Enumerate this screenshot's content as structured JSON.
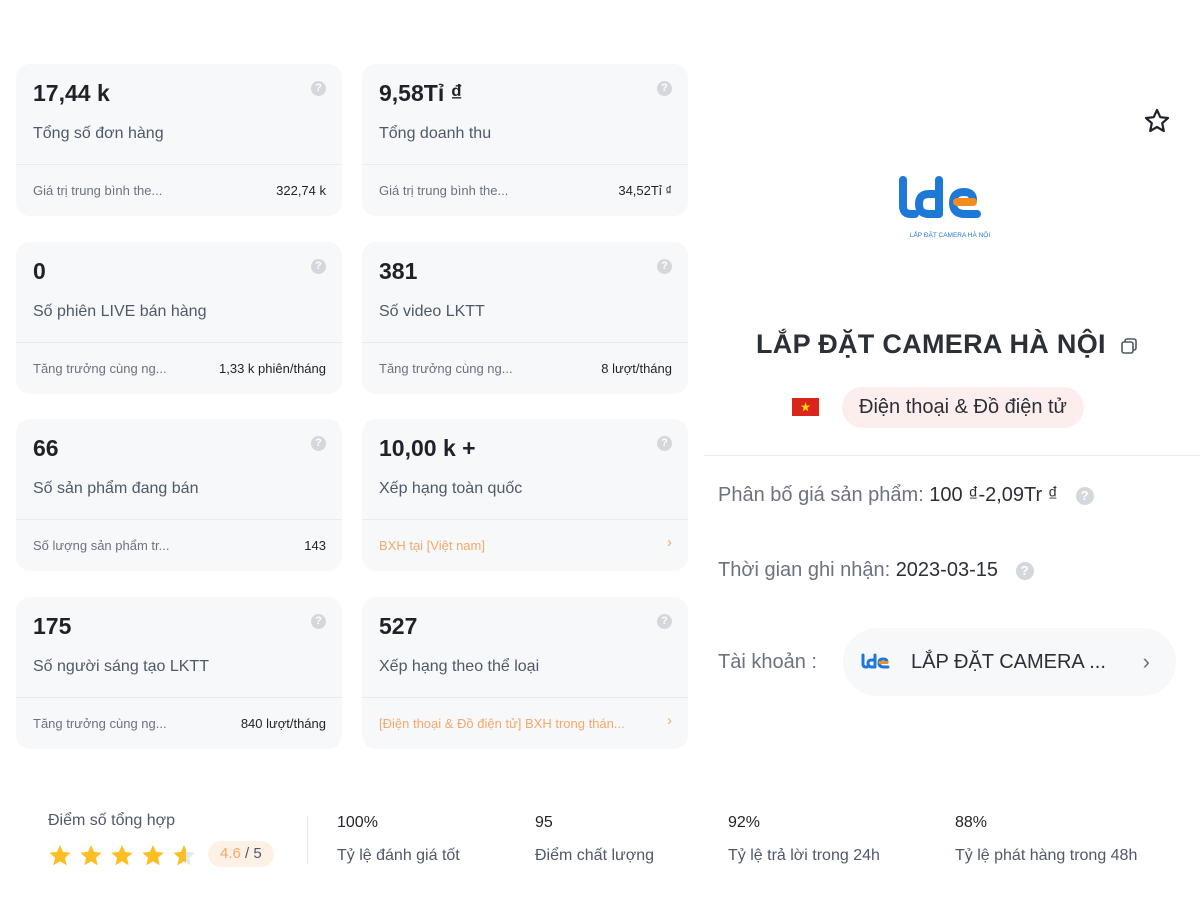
{
  "cards": [
    {
      "value": "17,44 k",
      "label": "Tổng số đơn hàng",
      "footer_label": "Giá trị trung bình the...",
      "footer_value": "322,74 k"
    },
    {
      "value": "9,58Tỉ ₫",
      "label": "Tổng doanh thu",
      "footer_label": "Giá trị trung bình the...",
      "footer_value": "34,52Tỉ ₫"
    },
    {
      "value": "0",
      "label": "Số phiên LIVE bán hàng",
      "footer_label": "Tăng trưởng cùng ng...",
      "footer_value": "1,33 k phiên/tháng"
    },
    {
      "value": "381",
      "label": "Số video LKTT",
      "footer_label": "Tăng trưởng cùng ng...",
      "footer_value": "8 lượt/tháng"
    },
    {
      "value": "66",
      "label": "Số sản phẩm đang bán",
      "footer_label": "Số lượng sản phẩm tr...",
      "footer_value": "143"
    },
    {
      "value": "10,00 k +",
      "label": "Xếp hạng toàn quốc",
      "footer_link": "BXH tại [Việt nam]"
    },
    {
      "value": "175",
      "label": "Số người sáng tạo LKTT",
      "footer_label": "Tăng trưởng cùng ng...",
      "footer_value": "840 lượt/tháng"
    },
    {
      "value": "527",
      "label": "Xếp hạng theo thể loại",
      "footer_link": "[Điện thoại & Đồ điện tử] BXH trong thán..."
    }
  ],
  "shop": {
    "name": "LẮP ĐẶT CAMERA HÀ NỘI",
    "logo_text": "LẮP ĐẶT CAMERA HÀ NỘI",
    "country_flag": "vietnam-flag",
    "category": "Điện thoại & Đồ điện tử",
    "price_label": "Phân bố giá sản phẩm:",
    "price_value": "100 ₫-2,09Tr ₫",
    "date_label": "Thời gian ghi nhận:",
    "date_value": "2023-03-15",
    "account_label": "Tài khoản :",
    "account_name": "LẮP ĐẶT CAMERA ..."
  },
  "score": {
    "title": "Điểm số tổng hợp",
    "rating": 4.6,
    "rating_text": "4.6",
    "rating_max": " / 5",
    "metrics": [
      {
        "value": "100%",
        "label": "Tỷ lệ đánh giá tốt"
      },
      {
        "value": "95",
        "label": "Điểm chất lượng"
      },
      {
        "value": "92%",
        "label": "Tỷ lệ trả lời trong 24h"
      },
      {
        "value": "88%",
        "label": "Tỷ lệ phát hàng trong 48h"
      }
    ]
  },
  "colors": {
    "accent_orange": "#f5a86b",
    "star": "#fbbf24",
    "flag_red": "#da251d",
    "logo_blue": "#1e78d8",
    "logo_orange": "#f28c1e"
  }
}
